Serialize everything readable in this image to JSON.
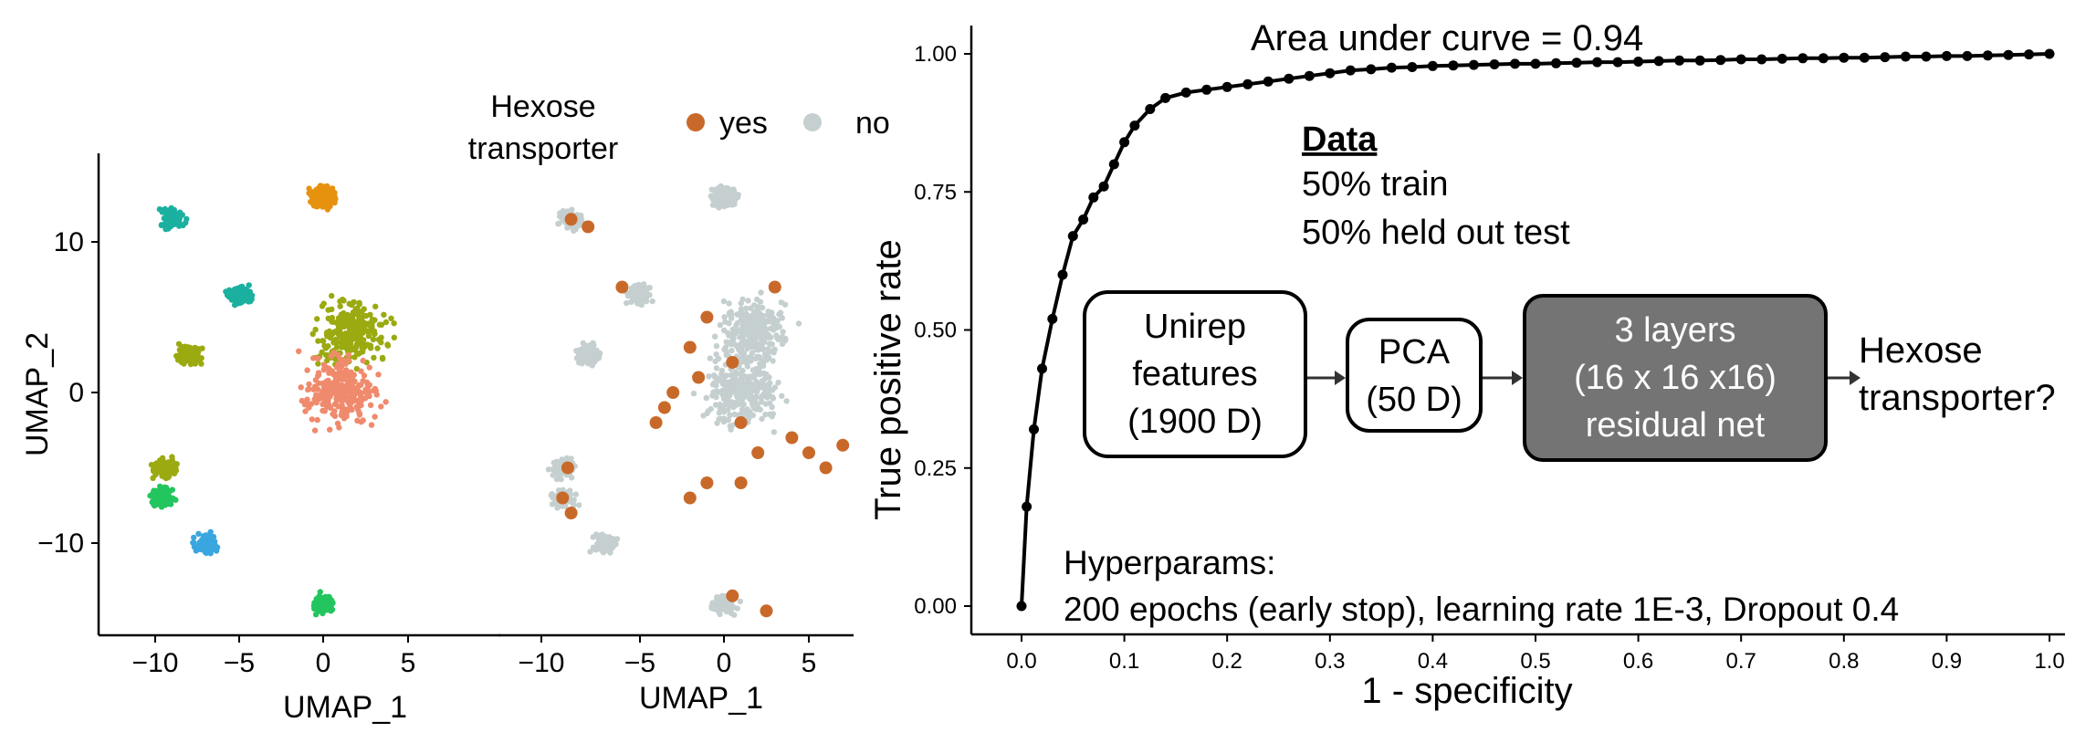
{
  "legend": {
    "title_line1": "Hexose",
    "title_line2": "transporter",
    "yes_label": "yes",
    "no_label": "no",
    "yes_color": "#c8692a",
    "no_color": "#c5cfcf"
  },
  "umap_left": {
    "xlabel": "UMAP_1",
    "ylabel": "UMAP_2",
    "x_ticks": [
      "−10",
      "−5",
      "0",
      "5"
    ],
    "y_ticks": [
      "10",
      "0",
      "−10"
    ]
  },
  "umap_right": {
    "xlabel": "UMAP_1",
    "x_ticks": [
      "−10",
      "−5",
      "0",
      "5"
    ]
  },
  "annotations": {
    "auc": "Area under curve = 0.94",
    "data_title": "Data",
    "data_line1": "50% train",
    "data_line2": "50% held out test",
    "box1": [
      "Unirep",
      "features",
      "(1900 D)"
    ],
    "box2": [
      "PCA",
      "(50 D)"
    ],
    "box3": [
      "3 layers",
      "(16 x 16 x16)",
      "residual net"
    ],
    "output": [
      "Hexose",
      "transporter?"
    ],
    "hyper_line1": "Hyperparams:",
    "hyper_line2": "200 epochs (early stop), learning rate 1E-3, Dropout 0.4"
  },
  "chart_data": [
    {
      "type": "scatter",
      "xlabel": "UMAP_1",
      "ylabel": "UMAP_2",
      "xlim": [
        -13,
        8
      ],
      "ylim": [
        -15,
        16
      ],
      "clusters": [
        {
          "color": "#e6920f",
          "x": 0,
          "y": 13
        },
        {
          "color": "#9aaa10",
          "x": 1.8,
          "y": 4
        },
        {
          "color": "#f08a6d",
          "x": 1,
          "y": 0
        },
        {
          "color": "#9aaa10",
          "x": -8,
          "y": 2.5
        },
        {
          "color": "#9aaa10",
          "x": -9.5,
          "y": -5
        },
        {
          "color": "#22c55e",
          "x": -9.5,
          "y": -7
        },
        {
          "color": "#22c55e",
          "x": 0,
          "y": -14
        },
        {
          "color": "#1bb0a0",
          "x": -9,
          "y": 11.5
        },
        {
          "color": "#1bb0a0",
          "x": -5,
          "y": 6.5
        },
        {
          "color": "#3aa6e0",
          "x": -7,
          "y": -10
        }
      ]
    },
    {
      "type": "scatter",
      "xlabel": "UMAP_1",
      "xlim": [
        -13,
        8
      ],
      "ylim": [
        -15,
        16
      ],
      "series": [
        {
          "name": "yes",
          "color": "#c8692a",
          "x": [
            -9,
            -8,
            -6,
            -1,
            -2,
            0.5,
            3,
            -3,
            -4,
            -9.2,
            -9.5,
            -9,
            -1,
            1,
            2,
            4,
            5,
            6,
            7,
            -2,
            0.5,
            2.5,
            -1.5,
            -3.5,
            1
          ],
          "y": [
            11.5,
            11,
            7,
            5,
            3,
            2,
            7,
            0,
            -2,
            -5,
            -7,
            -8,
            -6,
            -6,
            -4,
            -3,
            -4,
            -5,
            -3.5,
            -7,
            -13.5,
            -14.5,
            1,
            -1,
            -2
          ]
        },
        {
          "name": "no",
          "color": "#c5cfcf"
        }
      ]
    },
    {
      "type": "line",
      "title": "Area under curve = 0.94",
      "xlabel": "1 - specificity",
      "ylabel": "True positive rate",
      "xlim": [
        0,
        1
      ],
      "ylim": [
        0,
        1
      ],
      "x_ticks": [
        "0.0",
        "0.1",
        "0.2",
        "0.3",
        "0.4",
        "0.5",
        "0.6",
        "0.7",
        "0.8",
        "0.9",
        "1.0"
      ],
      "y_ticks": [
        "0.00",
        "0.25",
        "0.50",
        "0.75",
        "1.00"
      ],
      "x": [
        0,
        0.005,
        0.012,
        0.02,
        0.03,
        0.04,
        0.05,
        0.06,
        0.07,
        0.08,
        0.09,
        0.1,
        0.11,
        0.125,
        0.14,
        0.16,
        0.18,
        0.2,
        0.22,
        0.24,
        0.26,
        0.28,
        0.3,
        0.32,
        0.34,
        0.36,
        0.38,
        0.4,
        0.42,
        0.44,
        0.46,
        0.48,
        0.5,
        0.52,
        0.54,
        0.56,
        0.58,
        0.6,
        0.62,
        0.64,
        0.66,
        0.68,
        0.7,
        0.72,
        0.74,
        0.76,
        0.78,
        0.8,
        0.82,
        0.84,
        0.86,
        0.88,
        0.9,
        0.92,
        0.94,
        0.96,
        0.98,
        1.0
      ],
      "y": [
        0,
        0.18,
        0.32,
        0.43,
        0.52,
        0.6,
        0.67,
        0.7,
        0.74,
        0.76,
        0.8,
        0.84,
        0.87,
        0.9,
        0.92,
        0.93,
        0.935,
        0.94,
        0.945,
        0.95,
        0.955,
        0.96,
        0.965,
        0.97,
        0.972,
        0.975,
        0.976,
        0.978,
        0.979,
        0.98,
        0.981,
        0.982,
        0.982,
        0.983,
        0.984,
        0.985,
        0.985,
        0.986,
        0.987,
        0.988,
        0.988,
        0.989,
        0.99,
        0.99,
        0.991,
        0.992,
        0.992,
        0.993,
        0.993,
        0.994,
        0.995,
        0.995,
        0.996,
        0.996,
        0.997,
        0.998,
        0.999,
        1.0
      ]
    }
  ]
}
